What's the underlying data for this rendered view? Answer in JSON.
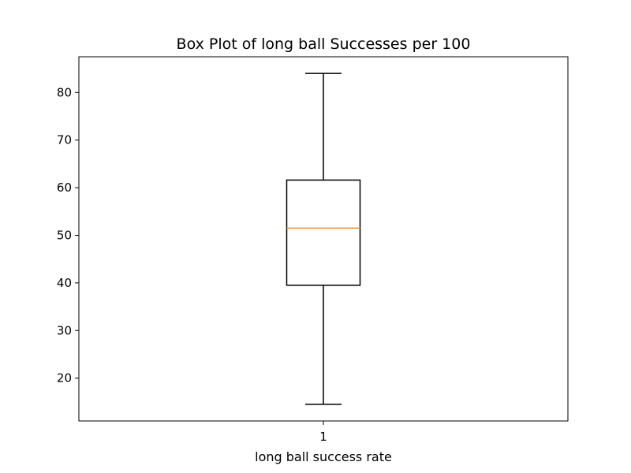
{
  "chart_data": {
    "type": "box",
    "title": "Box Plot of long ball Successes per 100",
    "xlabel": "long ball success rate",
    "ylabel": "",
    "categories": [
      "1"
    ],
    "ylim": [
      11.0,
      87.5
    ],
    "yticks": [
      20,
      30,
      40,
      50,
      60,
      70,
      80
    ],
    "grid": false,
    "boxes": [
      {
        "category": "1",
        "whisker_low": 14.5,
        "q1": 39.5,
        "median": 51.5,
        "q3": 61.6,
        "whisker_high": 84.0
      }
    ],
    "colors": {
      "box": "#000000",
      "whisker": "#000000",
      "median": "#f28e2b",
      "frame": "#000000",
      "background": "#ffffff"
    }
  }
}
